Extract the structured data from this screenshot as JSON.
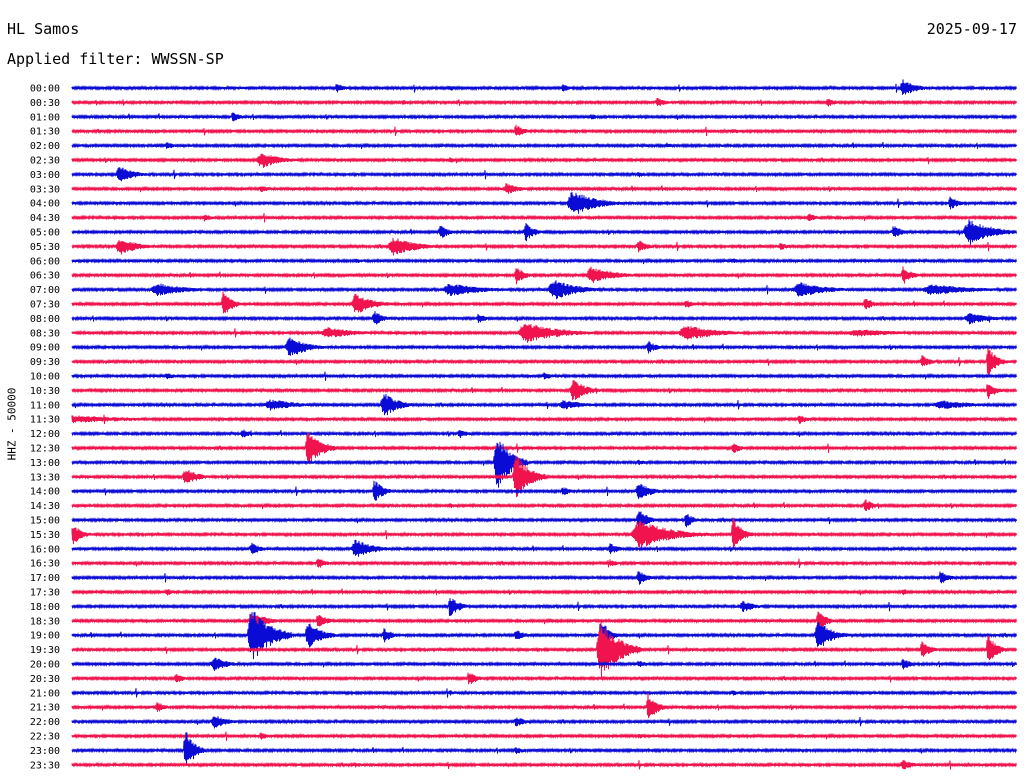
{
  "header": {
    "station": "HL Samos",
    "date": "2025-09-17",
    "filter": "Applied filter: WWSSN-SP"
  },
  "axis_label": "HHZ - 50000",
  "colors": {
    "trace_a": "#0b0bd6",
    "trace_b": "#f0134e"
  },
  "chart_data": {
    "type": "line",
    "title": "HL Samos",
    "ylabel": "HHZ - 50000",
    "row_labels": [
      "00:00",
      "00:30",
      "01:00",
      "01:30",
      "02:00",
      "02:30",
      "03:00",
      "03:30",
      "04:00",
      "04:30",
      "05:00",
      "05:30",
      "06:00",
      "06:30",
      "07:00",
      "07:30",
      "08:00",
      "08:30",
      "09:00",
      "09:30",
      "10:00",
      "10:30",
      "11:00",
      "11:30",
      "12:00",
      "12:30",
      "13:00",
      "13:30",
      "14:00",
      "14:30",
      "15:00",
      "15:30",
      "16:00",
      "16:30",
      "17:00",
      "17:30",
      "18:00",
      "18:30",
      "19:00",
      "19:30",
      "20:00",
      "20:30",
      "21:00",
      "21:30",
      "22:00",
      "22:30",
      "23:00",
      "23:30"
    ],
    "bursts": [
      [
        [
          0.88,
          2,
          9
        ],
        [
          0.28,
          1,
          5
        ],
        [
          0.52,
          1,
          4
        ],
        [
          0.4,
          1,
          3
        ]
      ],
      [
        [
          0.62,
          1,
          5
        ],
        [
          0.8,
          1,
          5
        ],
        [
          0.35,
          1,
          3
        ]
      ],
      [
        [
          0.17,
          1,
          5
        ],
        [
          0.55,
          1,
          3
        ]
      ],
      [
        [
          0.47,
          1,
          7
        ],
        [
          0.7,
          1,
          3
        ]
      ],
      [
        [
          0.1,
          1,
          4
        ],
        [
          0.63,
          1,
          3
        ]
      ],
      [
        [
          0.2,
          3,
          9
        ],
        [
          0.4,
          1,
          3
        ]
      ],
      [
        [
          0.05,
          2,
          10
        ],
        [
          0.6,
          1,
          3
        ]
      ],
      [
        [
          0.46,
          2,
          6
        ],
        [
          0.2,
          1,
          4
        ]
      ],
      [
        [
          0.53,
          4,
          14
        ],
        [
          0.93,
          1,
          7
        ]
      ],
      [
        [
          0.14,
          1,
          4
        ],
        [
          0.78,
          1,
          5
        ]
      ],
      [
        [
          0.95,
          4,
          14
        ],
        [
          0.39,
          1,
          8
        ],
        [
          0.48,
          1,
          10
        ],
        [
          0.87,
          1,
          7
        ]
      ],
      [
        [
          0.05,
          3,
          9
        ],
        [
          0.34,
          4,
          10
        ],
        [
          0.6,
          1,
          7
        ],
        [
          0.75,
          1,
          4
        ]
      ],
      [
        [
          0.3,
          1,
          3
        ],
        [
          0.7,
          1,
          3
        ]
      ],
      [
        [
          0.47,
          1,
          10
        ],
        [
          0.55,
          4,
          9
        ],
        [
          0.88,
          1,
          10
        ]
      ],
      [
        [
          0.09,
          5,
          7
        ],
        [
          0.4,
          6,
          7
        ],
        [
          0.51,
          4,
          11
        ],
        [
          0.77,
          5,
          8
        ],
        [
          0.91,
          8,
          6
        ]
      ],
      [
        [
          0.16,
          1,
          14
        ],
        [
          0.3,
          3,
          11
        ],
        [
          0.65,
          1,
          5
        ],
        [
          0.84,
          1,
          7
        ]
      ],
      [
        [
          0.32,
          1,
          9
        ],
        [
          0.43,
          1,
          5
        ],
        [
          0.95,
          4,
          6
        ]
      ],
      [
        [
          0.27,
          5,
          6
        ],
        [
          0.48,
          6,
          11
        ],
        [
          0.65,
          6,
          8
        ],
        [
          0.83,
          9,
          4
        ]
      ],
      [
        [
          0.23,
          3,
          11
        ],
        [
          0.61,
          1,
          7
        ]
      ],
      [
        [
          0.97,
          1,
          17
        ],
        [
          0.9,
          1,
          7
        ]
      ],
      [
        [
          0.1,
          1,
          4
        ],
        [
          0.5,
          1,
          4
        ]
      ],
      [
        [
          0.53,
          2,
          12
        ],
        [
          0.97,
          1,
          9
        ]
      ],
      [
        [
          0.21,
          5,
          6
        ],
        [
          0.33,
          2,
          14
        ],
        [
          0.52,
          4,
          5
        ],
        [
          0.92,
          6,
          5
        ]
      ],
      [
        [
          0.0,
          13,
          4
        ],
        [
          0.77,
          1,
          5
        ]
      ],
      [
        [
          0.18,
          1,
          5
        ],
        [
          0.41,
          1,
          5
        ]
      ],
      [
        [
          0.25,
          2,
          18
        ],
        [
          0.7,
          1,
          6
        ]
      ],
      [
        [
          0.45,
          2,
          30
        ],
        [
          0.6,
          1,
          3
        ]
      ],
      [
        [
          0.12,
          2,
          9
        ],
        [
          0.47,
          2,
          24
        ]
      ],
      [
        [
          0.32,
          1,
          13
        ],
        [
          0.52,
          1,
          5
        ],
        [
          0.6,
          2,
          9
        ]
      ],
      [
        [
          0.84,
          1,
          7
        ],
        [
          0.4,
          1,
          3
        ]
      ],
      [
        [
          0.6,
          1,
          13
        ],
        [
          0.65,
          1,
          8
        ]
      ],
      [
        [
          0.0,
          1,
          12
        ],
        [
          0.6,
          6,
          15
        ],
        [
          0.7,
          1,
          18
        ]
      ],
      [
        [
          0.19,
          1,
          7
        ],
        [
          0.3,
          3,
          10
        ],
        [
          0.57,
          1,
          6
        ]
      ],
      [
        [
          0.26,
          1,
          6
        ],
        [
          0.57,
          1,
          4
        ]
      ],
      [
        [
          0.6,
          1,
          8
        ],
        [
          0.92,
          1,
          8
        ]
      ],
      [
        [
          0.1,
          1,
          4
        ],
        [
          0.88,
          1,
          4
        ]
      ],
      [
        [
          0.4,
          1,
          13
        ],
        [
          0.71,
          2,
          6
        ]
      ],
      [
        [
          0.19,
          2,
          11
        ],
        [
          0.26,
          1,
          9
        ],
        [
          0.79,
          1,
          11
        ]
      ],
      [
        [
          0.19,
          3,
          30
        ],
        [
          0.25,
          2,
          14
        ],
        [
          0.33,
          1,
          8
        ],
        [
          0.47,
          1,
          6
        ],
        [
          0.56,
          1,
          17
        ],
        [
          0.79,
          2,
          16
        ]
      ],
      [
        [
          0.56,
          3,
          30
        ],
        [
          0.9,
          1,
          9
        ],
        [
          0.97,
          1,
          16
        ]
      ],
      [
        [
          0.15,
          2,
          8
        ],
        [
          0.6,
          1,
          4
        ],
        [
          0.88,
          1,
          6
        ]
      ],
      [
        [
          0.11,
          1,
          5
        ],
        [
          0.42,
          1,
          8
        ]
      ],
      [
        [
          0.4,
          1,
          3
        ],
        [
          0.7,
          1,
          3
        ]
      ],
      [
        [
          0.09,
          1,
          6
        ],
        [
          0.61,
          1,
          15
        ]
      ],
      [
        [
          0.15,
          2,
          8
        ],
        [
          0.47,
          1,
          6
        ]
      ],
      [
        [
          0.2,
          1,
          4
        ],
        [
          0.6,
          1,
          3
        ]
      ],
      [
        [
          0.12,
          1,
          22
        ],
        [
          0.47,
          1,
          4
        ]
      ],
      [
        [
          0.88,
          2,
          5
        ],
        [
          0.3,
          1,
          3
        ]
      ]
    ]
  }
}
